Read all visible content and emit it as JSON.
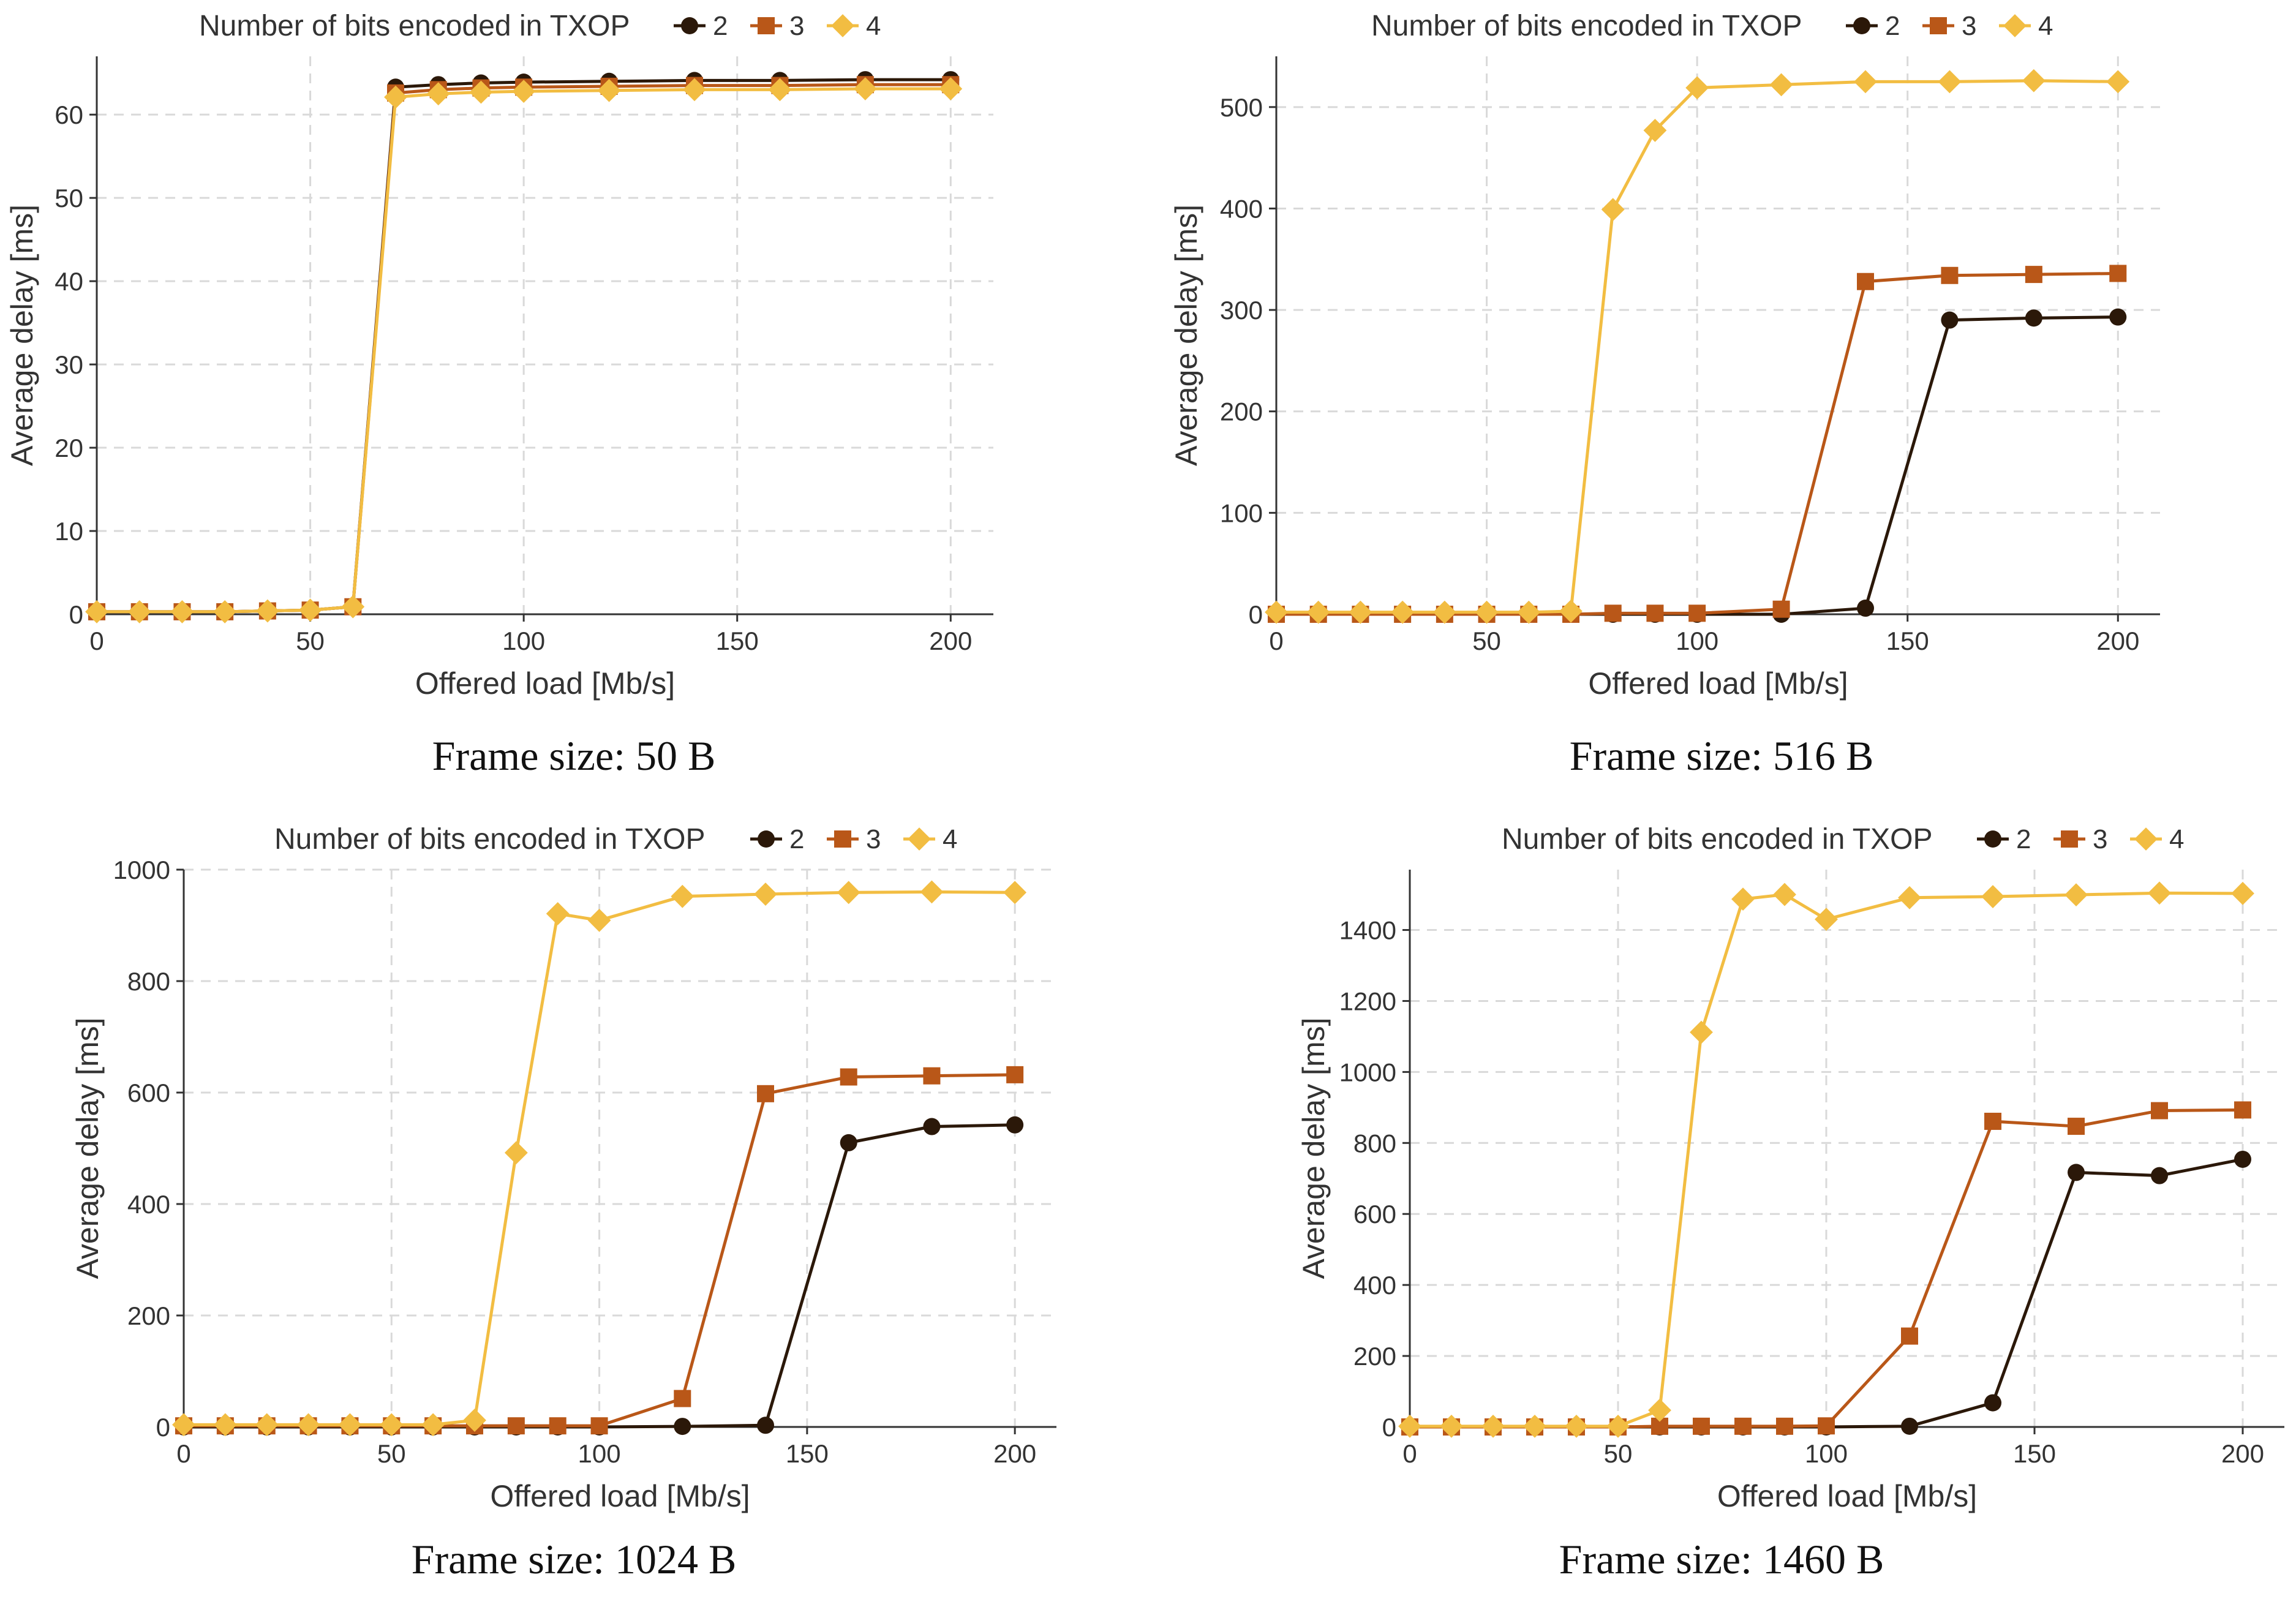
{
  "colors": {
    "s2": "#2b1809",
    "s3": "#b95718",
    "s4": "#f2bd42",
    "grid": "#d9d9d9",
    "axis": "#333333"
  },
  "chart_data": [
    {
      "type": "line",
      "caption": "Frame size: 50 B",
      "legend_title": "Number of bits encoded in TXOP",
      "xlabel": "Offered load [Mb/s]",
      "ylabel": "Average delay [ms]",
      "xlim": [
        0,
        210
      ],
      "ylim": [
        0,
        67
      ],
      "xticks": [
        0,
        50,
        100,
        150,
        200
      ],
      "yticks": [
        0,
        10,
        20,
        30,
        40,
        50,
        60
      ],
      "x": [
        0,
        10,
        20,
        30,
        40,
        50,
        60,
        70,
        80,
        90,
        100,
        120,
        140,
        160,
        180,
        200
      ],
      "series": [
        {
          "name": "2",
          "marker": "circle",
          "values": [
            0.3,
            0.3,
            0.3,
            0.3,
            0.4,
            0.5,
            0.9,
            63.3,
            63.6,
            63.8,
            63.9,
            64.0,
            64.1,
            64.1,
            64.2,
            64.2
          ]
        },
        {
          "name": "3",
          "marker": "square",
          "values": [
            0.3,
            0.3,
            0.3,
            0.3,
            0.4,
            0.5,
            0.9,
            62.6,
            63.0,
            63.2,
            63.3,
            63.4,
            63.5,
            63.5,
            63.6,
            63.6
          ]
        },
        {
          "name": "4",
          "marker": "diamond",
          "values": [
            0.3,
            0.3,
            0.3,
            0.3,
            0.4,
            0.5,
            0.9,
            62.1,
            62.5,
            62.7,
            62.8,
            62.9,
            63.0,
            63.0,
            63.1,
            63.1
          ]
        }
      ]
    },
    {
      "type": "line",
      "caption": "Frame size: 516 B",
      "legend_title": "Number of bits encoded in TXOP",
      "xlabel": "Offered load [Mb/s]",
      "ylabel": "Average delay [ms]",
      "xlim": [
        0,
        210
      ],
      "ylim": [
        0,
        550
      ],
      "xticks": [
        0,
        50,
        100,
        150,
        200
      ],
      "yticks": [
        0,
        100,
        200,
        300,
        400,
        500
      ],
      "x": [
        0,
        10,
        20,
        30,
        40,
        50,
        60,
        70,
        80,
        90,
        100,
        120,
        140,
        160,
        180,
        200
      ],
      "series": [
        {
          "name": "2",
          "marker": "circle",
          "values": [
            0,
            0,
            0,
            0,
            0,
            0,
            0,
            0,
            0,
            0,
            0,
            0,
            6,
            290,
            292,
            293
          ]
        },
        {
          "name": "3",
          "marker": "square",
          "values": [
            0,
            0,
            0,
            0,
            0,
            0,
            0,
            0,
            1,
            1,
            1,
            5,
            328,
            334,
            335,
            336
          ]
        },
        {
          "name": "4",
          "marker": "diamond",
          "values": [
            2,
            2,
            2,
            2,
            2,
            2,
            2,
            3,
            399,
            477,
            519,
            522,
            525,
            525,
            526,
            525
          ]
        }
      ]
    },
    {
      "type": "line",
      "caption": "Frame size: 1024 B",
      "legend_title": "Number of bits encoded in TXOP",
      "xlabel": "Offered load [Mb/s]",
      "ylabel": "Average delay [ms]",
      "xlim": [
        0,
        210
      ],
      "ylim": [
        0,
        1000
      ],
      "xticks": [
        0,
        50,
        100,
        150,
        200
      ],
      "yticks": [
        0,
        200,
        400,
        600,
        800,
        1000
      ],
      "x": [
        0,
        10,
        20,
        30,
        40,
        50,
        60,
        70,
        80,
        90,
        100,
        120,
        140,
        160,
        180,
        200
      ],
      "series": [
        {
          "name": "2",
          "marker": "circle",
          "values": [
            0,
            0,
            0,
            0,
            0,
            0,
            0,
            0,
            0,
            0,
            0,
            1,
            3,
            510,
            539,
            542
          ]
        },
        {
          "name": "3",
          "marker": "square",
          "values": [
            2,
            2,
            2,
            2,
            2,
            2,
            2,
            2,
            2,
            2,
            2,
            51,
            598,
            628,
            630,
            632
          ]
        },
        {
          "name": "4",
          "marker": "diamond",
          "values": [
            4,
            4,
            4,
            4,
            4,
            4,
            4,
            12,
            492,
            921,
            909,
            952,
            956,
            959,
            960,
            959
          ]
        }
      ]
    },
    {
      "type": "line",
      "caption": "Frame size: 1460 B",
      "legend_title": "Number of bits encoded in TXOP",
      "xlabel": "Offered load [Mb/s]",
      "ylabel": "Average delay [ms]",
      "xlim": [
        0,
        210
      ],
      "ylim": [
        0,
        1570
      ],
      "xticks": [
        0,
        50,
        100,
        150,
        200
      ],
      "yticks": [
        0,
        200,
        400,
        600,
        800,
        1000,
        1200,
        1400
      ],
      "x": [
        0,
        10,
        20,
        30,
        40,
        50,
        60,
        70,
        80,
        90,
        100,
        120,
        140,
        160,
        180,
        200
      ],
      "series": [
        {
          "name": "2",
          "marker": "circle",
          "values": [
            0,
            0,
            0,
            0,
            0,
            0,
            0,
            0,
            0,
            0,
            0,
            2,
            68,
            717,
            708,
            754
          ]
        },
        {
          "name": "3",
          "marker": "square",
          "values": [
            0,
            0,
            0,
            0,
            0,
            0,
            2,
            2,
            2,
            2,
            3,
            256,
            861,
            847,
            891,
            893
          ]
        },
        {
          "name": "4",
          "marker": "diamond",
          "values": [
            2,
            2,
            2,
            2,
            2,
            2,
            47,
            1112,
            1487,
            1500,
            1430,
            1491,
            1494,
            1499,
            1504,
            1503
          ]
        }
      ]
    }
  ]
}
